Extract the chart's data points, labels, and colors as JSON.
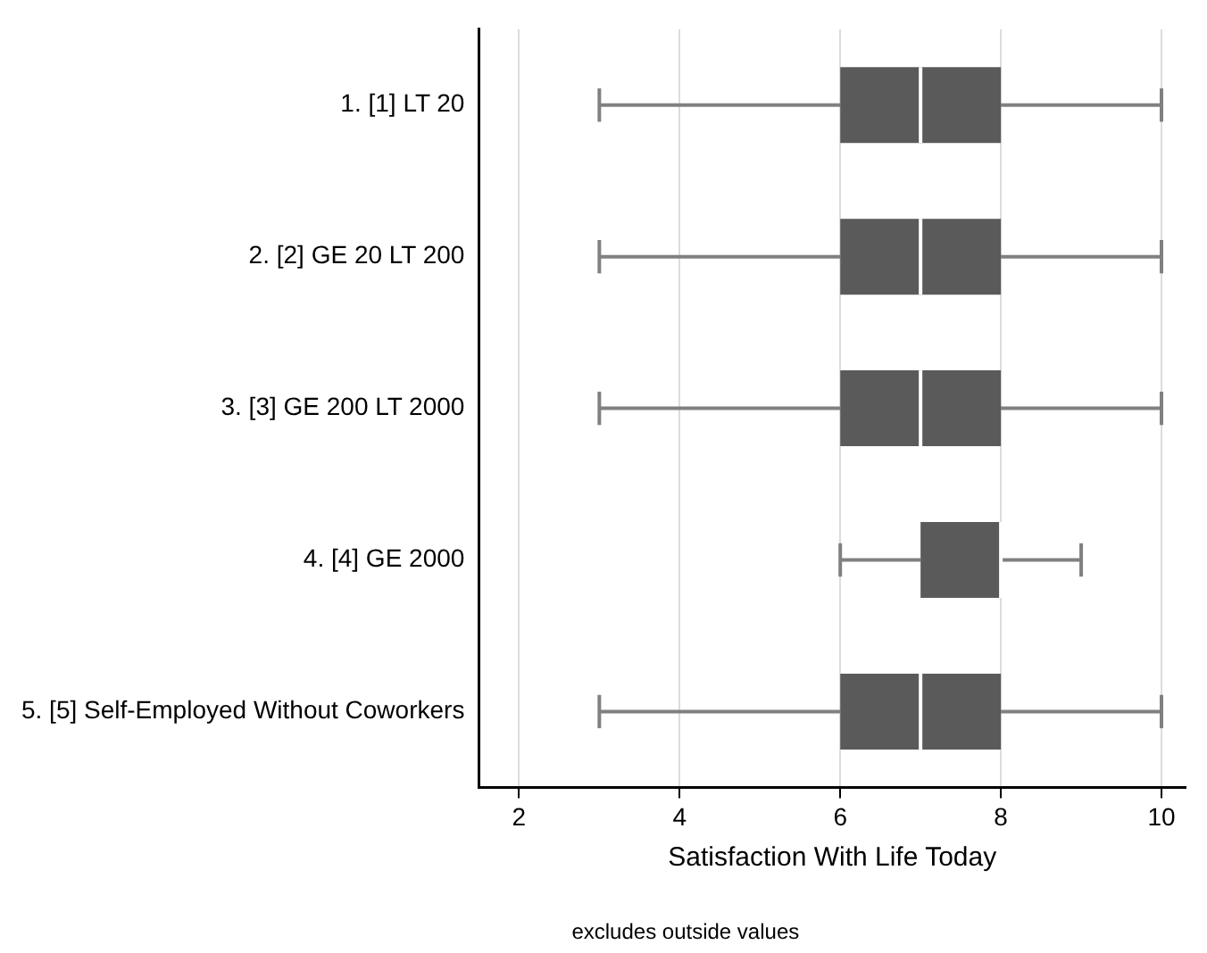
{
  "chart_data": {
    "type": "box",
    "orientation": "horizontal",
    "xlabel": "Satisfaction With Life Today",
    "categories": [
      "1. [1] LT 20",
      "2. [2] GE 20 LT 200",
      "3. [3] GE 200 LT 2000",
      "4. [4] GE 2000",
      "5. [5] Self-Employed Without Coworkers"
    ],
    "boxes": [
      {
        "low": 3,
        "q1": 6,
        "median": 7,
        "q3": 8,
        "high": 10
      },
      {
        "low": 3,
        "q1": 6,
        "median": 7,
        "q3": 8,
        "high": 10
      },
      {
        "low": 3,
        "q1": 6,
        "median": 7,
        "q3": 8,
        "high": 10
      },
      {
        "low": 6,
        "q1": 7,
        "median": 8,
        "q3": 8,
        "high": 9
      },
      {
        "low": 3,
        "q1": 6,
        "median": 7,
        "q3": 8,
        "high": 10
      }
    ],
    "color": "#5a5a5a",
    "xlim": [
      1.5,
      10.3
    ],
    "xticks": [
      2,
      4,
      6,
      8,
      10
    ],
    "grid": "x",
    "annotations": [
      "excludes outside values"
    ]
  }
}
